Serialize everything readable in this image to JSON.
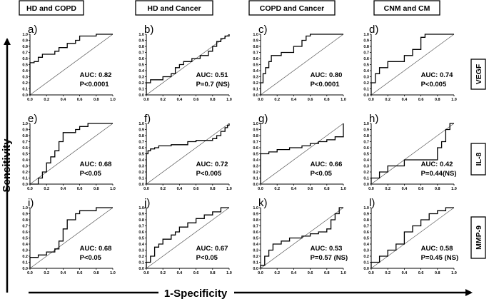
{
  "chart_data": {
    "type": "line",
    "figure_xlabel": "1-Specificity",
    "figure_ylabel": "Sensitivity",
    "column_titles": [
      "HD and COPD",
      "HD and Cancer",
      "COPD and Cancer",
      "CNM and CM"
    ],
    "row_titles": [
      "VEGF",
      "IL-8",
      "MMP-9"
    ],
    "x_ticks": [
      "0.0",
      "0.2",
      "0.4",
      "0.6",
      "0.8",
      "1.0"
    ],
    "y_ticks": [
      "0.0",
      "0.1",
      "0.2",
      "0.3",
      "0.4",
      "0.5",
      "0.6",
      "0.7",
      "0.8",
      "0.9",
      "1.0"
    ],
    "xlim": [
      0,
      1
    ],
    "ylim": [
      0,
      1
    ],
    "panels": [
      {
        "label": "a)",
        "auc": "AUC: 0.82",
        "p": "P<0.0001",
        "roc": [
          [
            0,
            0
          ],
          [
            0,
            0.53
          ],
          [
            0.05,
            0.53
          ],
          [
            0.05,
            0.55
          ],
          [
            0.1,
            0.55
          ],
          [
            0.1,
            0.62
          ],
          [
            0.15,
            0.62
          ],
          [
            0.15,
            0.67
          ],
          [
            0.3,
            0.67
          ],
          [
            0.3,
            0.72
          ],
          [
            0.35,
            0.72
          ],
          [
            0.35,
            0.78
          ],
          [
            0.45,
            0.78
          ],
          [
            0.45,
            0.85
          ],
          [
            0.55,
            0.85
          ],
          [
            0.55,
            0.9
          ],
          [
            0.6,
            0.9
          ],
          [
            0.6,
            0.97
          ],
          [
            0.8,
            0.97
          ],
          [
            0.8,
            1
          ],
          [
            1,
            1
          ]
        ]
      },
      {
        "label": "b)",
        "auc": "AUC: 0.51",
        "p": "P=0.7 (NS)",
        "roc": [
          [
            0,
            0
          ],
          [
            0,
            0.2
          ],
          [
            0.05,
            0.2
          ],
          [
            0.05,
            0.25
          ],
          [
            0.2,
            0.25
          ],
          [
            0.2,
            0.3
          ],
          [
            0.3,
            0.3
          ],
          [
            0.3,
            0.35
          ],
          [
            0.35,
            0.35
          ],
          [
            0.35,
            0.45
          ],
          [
            0.4,
            0.45
          ],
          [
            0.4,
            0.5
          ],
          [
            0.45,
            0.5
          ],
          [
            0.45,
            0.55
          ],
          [
            0.55,
            0.55
          ],
          [
            0.55,
            0.6
          ],
          [
            0.65,
            0.6
          ],
          [
            0.65,
            0.65
          ],
          [
            0.75,
            0.65
          ],
          [
            0.75,
            0.72
          ],
          [
            0.8,
            0.72
          ],
          [
            0.8,
            0.8
          ],
          [
            0.85,
            0.8
          ],
          [
            0.85,
            0.88
          ],
          [
            0.9,
            0.88
          ],
          [
            0.9,
            0.93
          ],
          [
            0.95,
            0.93
          ],
          [
            0.95,
            0.97
          ],
          [
            1,
            0.97
          ],
          [
            1,
            1
          ]
        ]
      },
      {
        "label": "c)",
        "auc": "AUC: 0.80",
        "p": "P<0.0001",
        "roc": [
          [
            0,
            0
          ],
          [
            0,
            0.2
          ],
          [
            0.03,
            0.2
          ],
          [
            0.03,
            0.35
          ],
          [
            0.06,
            0.35
          ],
          [
            0.06,
            0.45
          ],
          [
            0.1,
            0.45
          ],
          [
            0.1,
            0.55
          ],
          [
            0.13,
            0.55
          ],
          [
            0.13,
            0.65
          ],
          [
            0.25,
            0.65
          ],
          [
            0.25,
            0.7
          ],
          [
            0.4,
            0.7
          ],
          [
            0.4,
            0.8
          ],
          [
            0.5,
            0.8
          ],
          [
            0.5,
            0.9
          ],
          [
            0.55,
            0.9
          ],
          [
            0.55,
            0.97
          ],
          [
            0.6,
            0.97
          ],
          [
            0.6,
            1
          ],
          [
            1,
            1
          ]
        ]
      },
      {
        "label": "d)",
        "auc": "AUC: 0.74",
        "p": "P<0.005",
        "roc": [
          [
            0,
            0
          ],
          [
            0,
            0.2
          ],
          [
            0.05,
            0.2
          ],
          [
            0.05,
            0.35
          ],
          [
            0.1,
            0.35
          ],
          [
            0.1,
            0.45
          ],
          [
            0.2,
            0.45
          ],
          [
            0.2,
            0.55
          ],
          [
            0.4,
            0.55
          ],
          [
            0.4,
            0.65
          ],
          [
            0.5,
            0.65
          ],
          [
            0.5,
            0.75
          ],
          [
            0.6,
            0.75
          ],
          [
            0.6,
            0.95
          ],
          [
            0.65,
            0.95
          ],
          [
            0.65,
            1
          ],
          [
            1,
            1
          ]
        ]
      },
      {
        "label": "e)",
        "auc": "AUC: 0.68",
        "p": "P<0.05",
        "roc": [
          [
            0,
            0
          ],
          [
            0.1,
            0
          ],
          [
            0.1,
            0.1
          ],
          [
            0.15,
            0.1
          ],
          [
            0.15,
            0.2
          ],
          [
            0.2,
            0.2
          ],
          [
            0.2,
            0.35
          ],
          [
            0.25,
            0.35
          ],
          [
            0.25,
            0.45
          ],
          [
            0.3,
            0.45
          ],
          [
            0.3,
            0.55
          ],
          [
            0.35,
            0.55
          ],
          [
            0.35,
            0.7
          ],
          [
            0.4,
            0.7
          ],
          [
            0.4,
            0.85
          ],
          [
            0.55,
            0.85
          ],
          [
            0.55,
            0.9
          ],
          [
            0.6,
            0.9
          ],
          [
            0.6,
            0.95
          ],
          [
            0.7,
            0.95
          ],
          [
            0.7,
            1
          ],
          [
            1,
            1
          ]
        ]
      },
      {
        "label": "f)",
        "auc": "AUC: 0.72",
        "p": "P<0.005",
        "roc": [
          [
            0,
            0
          ],
          [
            0,
            0.5
          ],
          [
            0.02,
            0.5
          ],
          [
            0.02,
            0.55
          ],
          [
            0.05,
            0.55
          ],
          [
            0.05,
            0.58
          ],
          [
            0.1,
            0.58
          ],
          [
            0.1,
            0.6
          ],
          [
            0.15,
            0.6
          ],
          [
            0.15,
            0.63
          ],
          [
            0.3,
            0.63
          ],
          [
            0.3,
            0.65
          ],
          [
            0.5,
            0.65
          ],
          [
            0.5,
            0.7
          ],
          [
            0.6,
            0.7
          ],
          [
            0.6,
            0.72
          ],
          [
            0.8,
            0.72
          ],
          [
            0.8,
            0.75
          ],
          [
            0.85,
            0.75
          ],
          [
            0.85,
            0.8
          ],
          [
            0.9,
            0.8
          ],
          [
            0.9,
            0.87
          ],
          [
            0.95,
            0.87
          ],
          [
            0.95,
            0.93
          ],
          [
            0.98,
            0.93
          ],
          [
            0.98,
            0.97
          ],
          [
            1,
            0.97
          ],
          [
            1,
            1
          ]
        ]
      },
      {
        "label": "g)",
        "auc": "AUC: 0.66",
        "p": "P<0.05",
        "roc": [
          [
            0,
            0
          ],
          [
            0,
            0.5
          ],
          [
            0.1,
            0.5
          ],
          [
            0.1,
            0.53
          ],
          [
            0.2,
            0.53
          ],
          [
            0.2,
            0.57
          ],
          [
            0.35,
            0.57
          ],
          [
            0.35,
            0.6
          ],
          [
            0.5,
            0.6
          ],
          [
            0.5,
            0.63
          ],
          [
            0.6,
            0.63
          ],
          [
            0.6,
            0.67
          ],
          [
            0.7,
            0.67
          ],
          [
            0.7,
            0.7
          ],
          [
            0.8,
            0.7
          ],
          [
            0.8,
            0.73
          ],
          [
            0.9,
            0.73
          ],
          [
            0.9,
            0.78
          ],
          [
            1,
            0.78
          ],
          [
            1,
            1
          ]
        ]
      },
      {
        "label": "h)",
        "auc": "AUC: 0.42",
        "p": "P=0.44(NS)",
        "roc": [
          [
            0,
            0
          ],
          [
            0,
            0.1
          ],
          [
            0.1,
            0.1
          ],
          [
            0.1,
            0.2
          ],
          [
            0.2,
            0.2
          ],
          [
            0.2,
            0.3
          ],
          [
            0.4,
            0.3
          ],
          [
            0.4,
            0.4
          ],
          [
            0.8,
            0.4
          ],
          [
            0.8,
            0.6
          ],
          [
            0.85,
            0.6
          ],
          [
            0.85,
            0.7
          ],
          [
            0.9,
            0.7
          ],
          [
            0.9,
            0.9
          ],
          [
            0.95,
            0.9
          ],
          [
            0.95,
            1
          ],
          [
            1,
            1
          ]
        ]
      },
      {
        "label": "i)",
        "auc": "AUC: 0.68",
        "p": "P<0.05",
        "roc": [
          [
            0,
            0
          ],
          [
            0,
            0.18
          ],
          [
            0.1,
            0.18
          ],
          [
            0.1,
            0.22
          ],
          [
            0.2,
            0.22
          ],
          [
            0.2,
            0.27
          ],
          [
            0.3,
            0.27
          ],
          [
            0.3,
            0.32
          ],
          [
            0.35,
            0.32
          ],
          [
            0.35,
            0.45
          ],
          [
            0.4,
            0.45
          ],
          [
            0.4,
            0.65
          ],
          [
            0.45,
            0.65
          ],
          [
            0.45,
            0.8
          ],
          [
            0.55,
            0.8
          ],
          [
            0.55,
            0.9
          ],
          [
            0.6,
            0.9
          ],
          [
            0.6,
            0.95
          ],
          [
            0.8,
            0.95
          ],
          [
            0.8,
            1
          ],
          [
            1,
            1
          ]
        ]
      },
      {
        "label": "j)",
        "auc": "AUC: 0.67",
        "p": "P<0.05",
        "roc": [
          [
            0,
            0
          ],
          [
            0,
            0.1
          ],
          [
            0.05,
            0.1
          ],
          [
            0.05,
            0.2
          ],
          [
            0.1,
            0.2
          ],
          [
            0.1,
            0.35
          ],
          [
            0.15,
            0.35
          ],
          [
            0.15,
            0.4
          ],
          [
            0.2,
            0.4
          ],
          [
            0.2,
            0.48
          ],
          [
            0.3,
            0.48
          ],
          [
            0.3,
            0.55
          ],
          [
            0.35,
            0.55
          ],
          [
            0.35,
            0.6
          ],
          [
            0.4,
            0.6
          ],
          [
            0.4,
            0.68
          ],
          [
            0.5,
            0.68
          ],
          [
            0.5,
            0.75
          ],
          [
            0.6,
            0.75
          ],
          [
            0.6,
            0.82
          ],
          [
            0.7,
            0.82
          ],
          [
            0.7,
            0.88
          ],
          [
            0.8,
            0.88
          ],
          [
            0.8,
            0.93
          ],
          [
            0.9,
            0.93
          ],
          [
            0.9,
            1
          ],
          [
            1,
            1
          ]
        ]
      },
      {
        "label": "k)",
        "auc": "AUC: 0.53",
        "p": "P=0.57 (NS)",
        "roc": [
          [
            0,
            0
          ],
          [
            0,
            0.05
          ],
          [
            0.05,
            0.05
          ],
          [
            0.05,
            0.2
          ],
          [
            0.1,
            0.2
          ],
          [
            0.1,
            0.3
          ],
          [
            0.15,
            0.3
          ],
          [
            0.15,
            0.4
          ],
          [
            0.25,
            0.4
          ],
          [
            0.25,
            0.45
          ],
          [
            0.35,
            0.45
          ],
          [
            0.35,
            0.5
          ],
          [
            0.5,
            0.5
          ],
          [
            0.5,
            0.53
          ],
          [
            0.6,
            0.53
          ],
          [
            0.6,
            0.57
          ],
          [
            0.7,
            0.57
          ],
          [
            0.7,
            0.6
          ],
          [
            0.8,
            0.6
          ],
          [
            0.8,
            0.65
          ],
          [
            0.85,
            0.65
          ],
          [
            0.85,
            0.8
          ],
          [
            0.9,
            0.8
          ],
          [
            0.9,
            0.9
          ],
          [
            0.95,
            0.9
          ],
          [
            0.95,
            1
          ],
          [
            1,
            1
          ]
        ]
      },
      {
        "label": "l)",
        "auc": "AUC: 0.58",
        "p": "P=0.45 (NS)",
        "roc": [
          [
            0,
            0
          ],
          [
            0,
            0.1
          ],
          [
            0.1,
            0.1
          ],
          [
            0.1,
            0.2
          ],
          [
            0.2,
            0.2
          ],
          [
            0.2,
            0.3
          ],
          [
            0.3,
            0.3
          ],
          [
            0.3,
            0.4
          ],
          [
            0.4,
            0.4
          ],
          [
            0.4,
            0.6
          ],
          [
            0.5,
            0.6
          ],
          [
            0.5,
            0.7
          ],
          [
            0.6,
            0.7
          ],
          [
            0.6,
            0.8
          ],
          [
            0.7,
            0.8
          ],
          [
            0.7,
            0.9
          ],
          [
            0.8,
            0.9
          ],
          [
            0.8,
            0.95
          ],
          [
            0.9,
            0.95
          ],
          [
            0.9,
            1
          ],
          [
            1,
            1
          ]
        ]
      }
    ]
  }
}
